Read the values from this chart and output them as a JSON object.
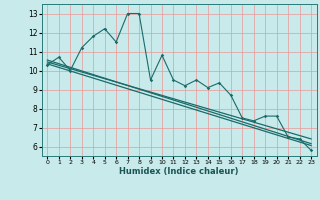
{
  "title": "",
  "xlabel": "Humidex (Indice chaleur)",
  "xlim": [
    -0.5,
    23.5
  ],
  "ylim": [
    5.5,
    13.5
  ],
  "yticks": [
    6,
    7,
    8,
    9,
    10,
    11,
    12,
    13
  ],
  "xticks": [
    0,
    1,
    2,
    3,
    4,
    5,
    6,
    7,
    8,
    9,
    10,
    11,
    12,
    13,
    14,
    15,
    16,
    17,
    18,
    19,
    20,
    21,
    22,
    23
  ],
  "background_color": "#c8eaea",
  "grid_color": "#e89898",
  "line_color": "#1a6b6b",
  "jagged_x": [
    0,
    1,
    2,
    3,
    4,
    5,
    6,
    7,
    8,
    9,
    10,
    11,
    12,
    13,
    14,
    15,
    16,
    17,
    18,
    19,
    20,
    21,
    22,
    23
  ],
  "jagged_y": [
    10.3,
    10.7,
    10.0,
    11.2,
    11.8,
    12.2,
    11.5,
    13.0,
    13.0,
    9.5,
    10.8,
    9.5,
    9.2,
    9.5,
    9.1,
    9.35,
    8.7,
    7.5,
    7.35,
    7.6,
    7.6,
    6.5,
    6.4,
    5.8
  ],
  "line1_x": [
    0,
    23
  ],
  "line1_y": [
    10.35,
    6.05
  ],
  "line2_x": [
    0,
    23
  ],
  "line2_y": [
    10.55,
    6.15
  ],
  "line3_x": [
    0,
    23
  ],
  "line3_y": [
    10.45,
    6.4
  ]
}
